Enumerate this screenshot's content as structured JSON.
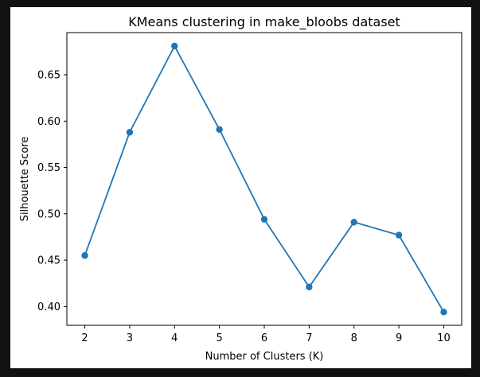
{
  "chart_data": {
    "type": "line",
    "title": "KMeans clustering in make_bloobs dataset",
    "xlabel": "Number of Clusters (K)",
    "ylabel": "Silhouette Score",
    "x": [
      2,
      3,
      4,
      5,
      6,
      7,
      8,
      9,
      10
    ],
    "series": [
      {
        "name": "Silhouette Score",
        "values": [
          0.455,
          0.588,
          0.681,
          0.591,
          0.494,
          0.421,
          0.491,
          0.477,
          0.394
        ]
      }
    ],
    "xticks": [
      2,
      3,
      4,
      5,
      6,
      7,
      8,
      9,
      10
    ],
    "yticks": [
      0.4,
      0.45,
      0.5,
      0.55,
      0.6,
      0.65
    ],
    "ytick_labels": [
      "0.40",
      "0.45",
      "0.50",
      "0.55",
      "0.60",
      "0.65"
    ],
    "xlim": [
      1.6,
      10.4
    ],
    "ylim": [
      0.3797,
      0.6955
    ],
    "grid": false,
    "line_color": "#1f77b4",
    "marker": "circle"
  }
}
